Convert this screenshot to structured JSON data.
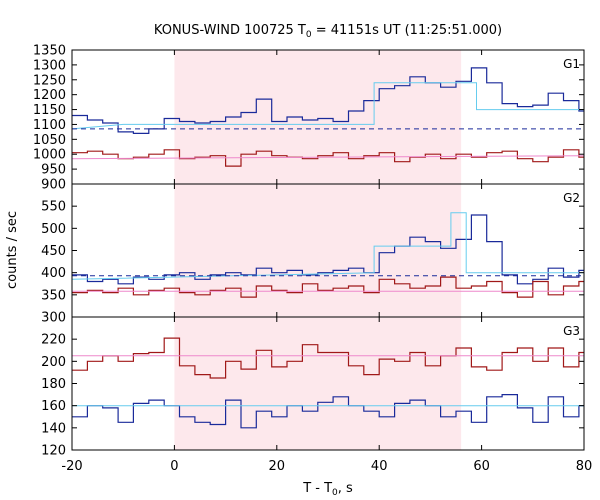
{
  "chart_data": {
    "type": "line",
    "title": {
      "prefix": "KONUS-WIND 100725 T",
      "sub": "0",
      "suffix": " = 41151s UT (11:25:51.000)"
    },
    "xlabel": {
      "prefix": "T - T",
      "sub": "0",
      "suffix": ", s"
    },
    "ylabel": "counts / sec",
    "xlim": [
      -20,
      80
    ],
    "xticks": [
      -20,
      0,
      20,
      40,
      60,
      80
    ],
    "shaded_interval": [
      0,
      56
    ],
    "colors": {
      "upper_hist": "#1a2a9a",
      "upper_fit": "#66ccee",
      "lower_hist": "#a01818",
      "lower_fit": "#ee88cc",
      "background": "#1a2a9a",
      "shade": "#fde8ec"
    },
    "panels": [
      {
        "label": "G1",
        "ylim": [
          900,
          1350
        ],
        "yticks": [
          900,
          950,
          1000,
          1050,
          1100,
          1150,
          1200,
          1250,
          1300,
          1350
        ],
        "background_level": 1085,
        "bin_start": -20,
        "bin_width": 3,
        "series": [
          {
            "role": "upper_hist",
            "values": [
              1130,
              1115,
              1105,
              1075,
              1070,
              1085,
              1120,
              1110,
              1105,
              1110,
              1125,
              1140,
              1185,
              1110,
              1125,
              1115,
              1120,
              1110,
              1145,
              1180,
              1220,
              1230,
              1260,
              1240,
              1225,
              1245,
              1290,
              1240,
              1170,
              1160,
              1165,
              1205,
              1180,
              1145
            ]
          },
          {
            "role": "upper_fit",
            "steps": [
              [
                -20,
                1085
              ],
              [
                -10,
                1100
              ],
              [
                39,
                1100
              ],
              [
                39,
                1240
              ],
              [
                59,
                1240
              ],
              [
                59,
                1150
              ],
              [
                80,
                1150
              ]
            ]
          },
          {
            "role": "lower_hist",
            "values": [
              1005,
              1010,
              1000,
              985,
              990,
              1000,
              1015,
              985,
              990,
              995,
              960,
              1000,
              1010,
              995,
              990,
              985,
              995,
              1005,
              985,
              995,
              1005,
              975,
              990,
              1000,
              985,
              1000,
              990,
              1005,
              1010,
              985,
              975,
              990,
              1015,
              990
            ]
          },
          {
            "role": "lower_fit",
            "steps": [
              [
                -20,
                985
              ],
              [
                80,
                995
              ]
            ]
          }
        ]
      },
      {
        "label": "G2",
        "ylim": [
          300,
          600
        ],
        "yticks": [
          300,
          350,
          400,
          450,
          500,
          550
        ],
        "background_level": 393,
        "bin_start": -20,
        "bin_width": 3,
        "series": [
          {
            "role": "upper_hist",
            "values": [
              395,
              380,
              385,
              375,
              390,
              385,
              395,
              400,
              385,
              395,
              400,
              395,
              410,
              400,
              405,
              395,
              400,
              405,
              410,
              400,
              445,
              460,
              480,
              470,
              455,
              475,
              530,
              470,
              395,
              375,
              385,
              410,
              390,
              405
            ]
          },
          {
            "role": "upper_fit",
            "steps": [
              [
                -20,
                385
              ],
              [
                39,
                400
              ],
              [
                39,
                460
              ],
              [
                54,
                460
              ],
              [
                54,
                535
              ],
              [
                57,
                535
              ],
              [
                57,
                400
              ],
              [
                80,
                400
              ]
            ]
          },
          {
            "role": "lower_hist",
            "values": [
              355,
              360,
              355,
              365,
              350,
              360,
              365,
              355,
              350,
              360,
              365,
              345,
              370,
              360,
              355,
              375,
              360,
              365,
              370,
              355,
              385,
              375,
              365,
              370,
              390,
              365,
              370,
              380,
              355,
              345,
              380,
              350,
              370,
              380
            ]
          },
          {
            "role": "lower_fit",
            "steps": [
              [
                -20,
                358
              ],
              [
                80,
                358
              ]
            ]
          }
        ]
      },
      {
        "label": "G3",
        "ylim": [
          120,
          240
        ],
        "yticks": [
          120,
          140,
          160,
          180,
          200,
          220
        ],
        "background_level": null,
        "bin_start": -20,
        "bin_width": 3,
        "series": [
          {
            "role": "lower_hist",
            "values": [
              192,
              200,
              205,
              200,
              207,
              208,
              221,
              196,
              188,
              185,
              200,
              193,
              210,
              195,
              200,
              215,
              208,
              208,
              196,
              188,
              202,
              200,
              208,
              196,
              205,
              212,
              195,
              192,
              208,
              212,
              200,
              212,
              195,
              208
            ]
          },
          {
            "role": "lower_fit",
            "steps": [
              [
                -20,
                205
              ],
              [
                80,
                205
              ]
            ]
          },
          {
            "role": "upper_hist",
            "values": [
              150,
              160,
              158,
              145,
              162,
              165,
              160,
              150,
              145,
              143,
              165,
              140,
              155,
              150,
              160,
              155,
              163,
              168,
              160,
              155,
              150,
              162,
              165,
              160,
              150,
              155,
              145,
              168,
              170,
              158,
              145,
              168,
              150,
              160
            ]
          },
          {
            "role": "upper_fit",
            "steps": [
              [
                -20,
                160
              ],
              [
                80,
                160
              ]
            ]
          }
        ]
      }
    ]
  }
}
